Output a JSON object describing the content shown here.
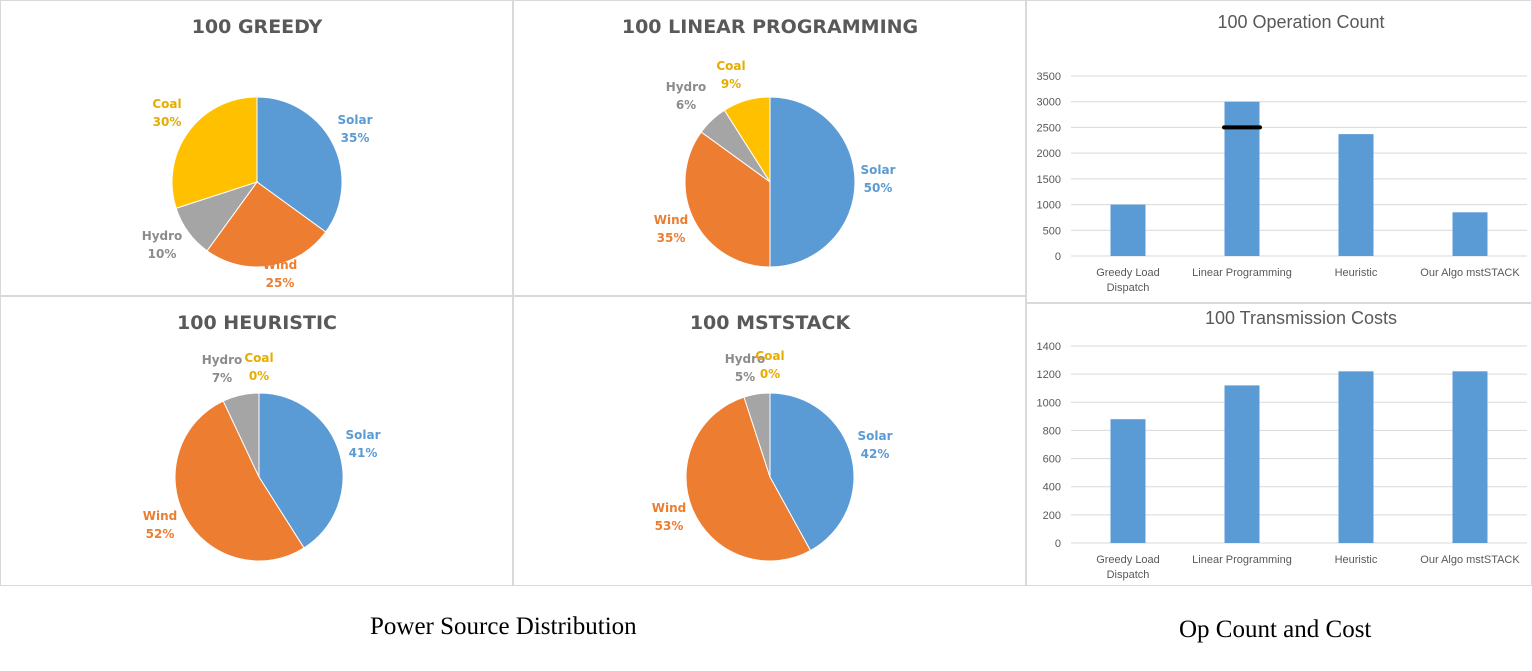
{
  "colors": {
    "Solar": "#5b9bd5",
    "Wind": "#ed7d31",
    "Hydro": "#a5a5a5",
    "Coal": "#ffc000",
    "bar": "#5b9bd5",
    "grid": "#d9d9d9",
    "marker": "#000000"
  },
  "captions": {
    "left": "Power Source Distribution",
    "right": "Op Count and Cost"
  },
  "chart_data": [
    {
      "type": "pie",
      "title": "100 GREEDY",
      "slices": [
        {
          "name": "Solar",
          "value": 35,
          "label": "35%"
        },
        {
          "name": "Wind",
          "value": 25,
          "label": "25%"
        },
        {
          "name": "Hydro",
          "value": 10,
          "label": "10%"
        },
        {
          "name": "Coal",
          "value": 30,
          "label": "30%"
        }
      ]
    },
    {
      "type": "pie",
      "title": "100 LINEAR PROGRAMMING",
      "slices": [
        {
          "name": "Solar",
          "value": 50,
          "label": "50%"
        },
        {
          "name": "Wind",
          "value": 35,
          "label": "35%"
        },
        {
          "name": "Hydro",
          "value": 6,
          "label": "6%"
        },
        {
          "name": "Coal",
          "value": 9,
          "label": "9%"
        }
      ]
    },
    {
      "type": "pie",
      "title": "100 HEURISTIC",
      "slices": [
        {
          "name": "Solar",
          "value": 41,
          "label": "41%"
        },
        {
          "name": "Wind",
          "value": 52,
          "label": "52%"
        },
        {
          "name": "Hydro",
          "value": 7,
          "label": "7%"
        },
        {
          "name": "Coal",
          "value": 0,
          "label": "0%"
        }
      ]
    },
    {
      "type": "pie",
      "title": "100 MSTSTACK",
      "slices": [
        {
          "name": "Solar",
          "value": 42,
          "label": "42%"
        },
        {
          "name": "Wind",
          "value": 53,
          "label": "53%"
        },
        {
          "name": "Hydro",
          "value": 5,
          "label": "5%"
        },
        {
          "name": "Coal",
          "value": 0,
          "label": "0%"
        }
      ]
    },
    {
      "type": "bar",
      "title": "100 Operation Count",
      "categories": [
        [
          "Greedy Load",
          "Dispatch"
        ],
        [
          "Linear Programming"
        ],
        [
          "Heuristic"
        ],
        [
          "Our Algo mstSTACK"
        ]
      ],
      "values": [
        1000,
        3000,
        2370,
        850
      ],
      "marker": {
        "category_index": 1,
        "value": 2500
      },
      "ylim": [
        0,
        3500
      ],
      "yticks": [
        0,
        500,
        1000,
        1500,
        2000,
        2500,
        3000,
        3500
      ],
      "grid": true
    },
    {
      "type": "bar",
      "title": "100 Transmission Costs",
      "categories": [
        [
          "Greedy Load",
          "Dispatch"
        ],
        [
          "Linear Programming"
        ],
        [
          "Heuristic"
        ],
        [
          "Our Algo mstSTACK"
        ]
      ],
      "values": [
        880,
        1120,
        1220,
        1220
      ],
      "ylim": [
        0,
        1400
      ],
      "yticks": [
        0,
        200,
        400,
        600,
        800,
        1000,
        1200,
        1400
      ],
      "grid": true
    }
  ]
}
